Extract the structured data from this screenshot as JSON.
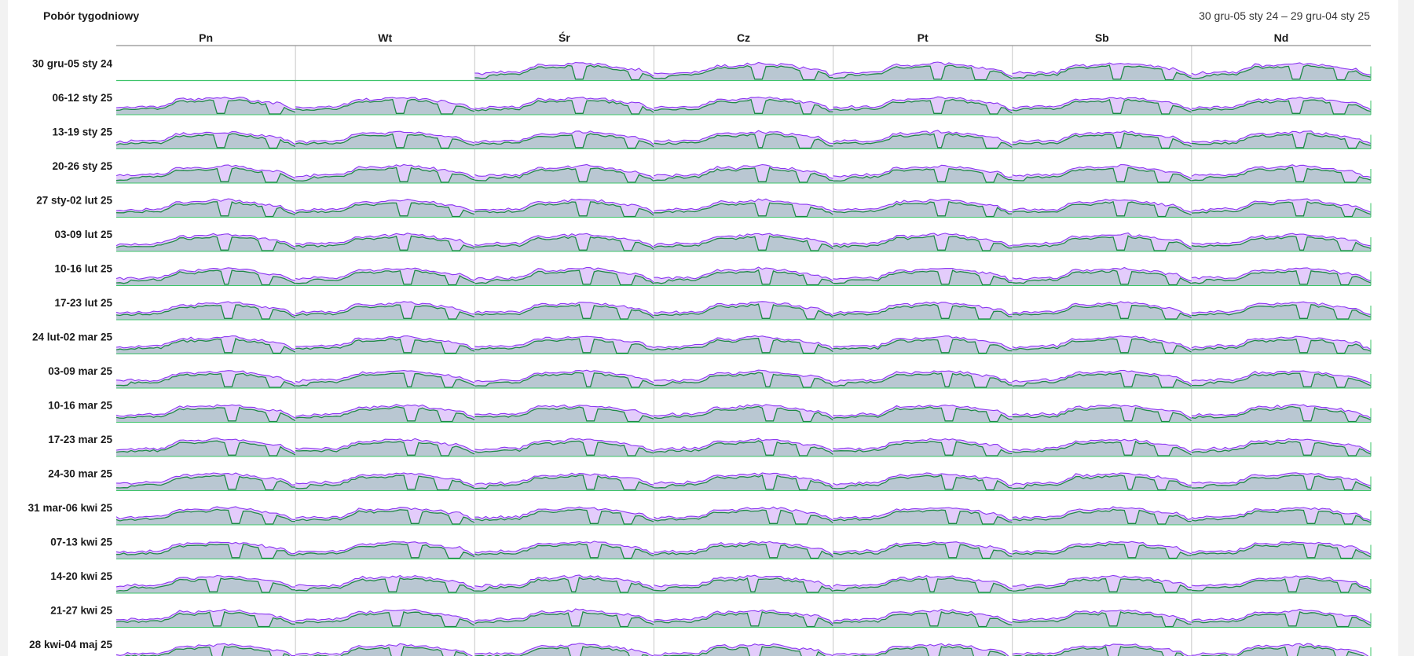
{
  "header": {
    "title": "Pobór tygodniowy",
    "range": "30 gru-05 sty 24 – 29 gru-04 sty 25"
  },
  "colors": {
    "green_line": "#1f8a46",
    "purple_line": "#8a35f0",
    "gray_fill": "#b9c7d2",
    "purple_fill": "#e3ccfb",
    "separator": "#c7c7c7",
    "baseline": "#3ec46a",
    "axis": "#8f8f8f"
  },
  "chart_data": {
    "type": "area",
    "days": [
      "Pn",
      "Wt",
      "Śr",
      "Cz",
      "Pt",
      "Sb",
      "Nd"
    ],
    "weeks": [
      "30 gru-05 sty 24",
      "06-12 sty 25",
      "13-19 sty 25",
      "20-26 sty 25",
      "27 sty-02 lut 25",
      "03-09 lut 25",
      "10-16 lut 25",
      "17-23 lut 25",
      "24 lut-02 mar 25",
      "03-09 mar 25",
      "10-16 mar 25",
      "17-23 mar 25",
      "24-30 mar 25",
      "31 mar-06 kwi 25",
      "07-13 kwi 25",
      "14-20 kwi 25",
      "21-27 kwi 25",
      "28 kwi-04 maj 25"
    ],
    "no_data_until": {
      "week_index": 0,
      "day_index": 2
    },
    "grid": false,
    "legend": "none"
  }
}
